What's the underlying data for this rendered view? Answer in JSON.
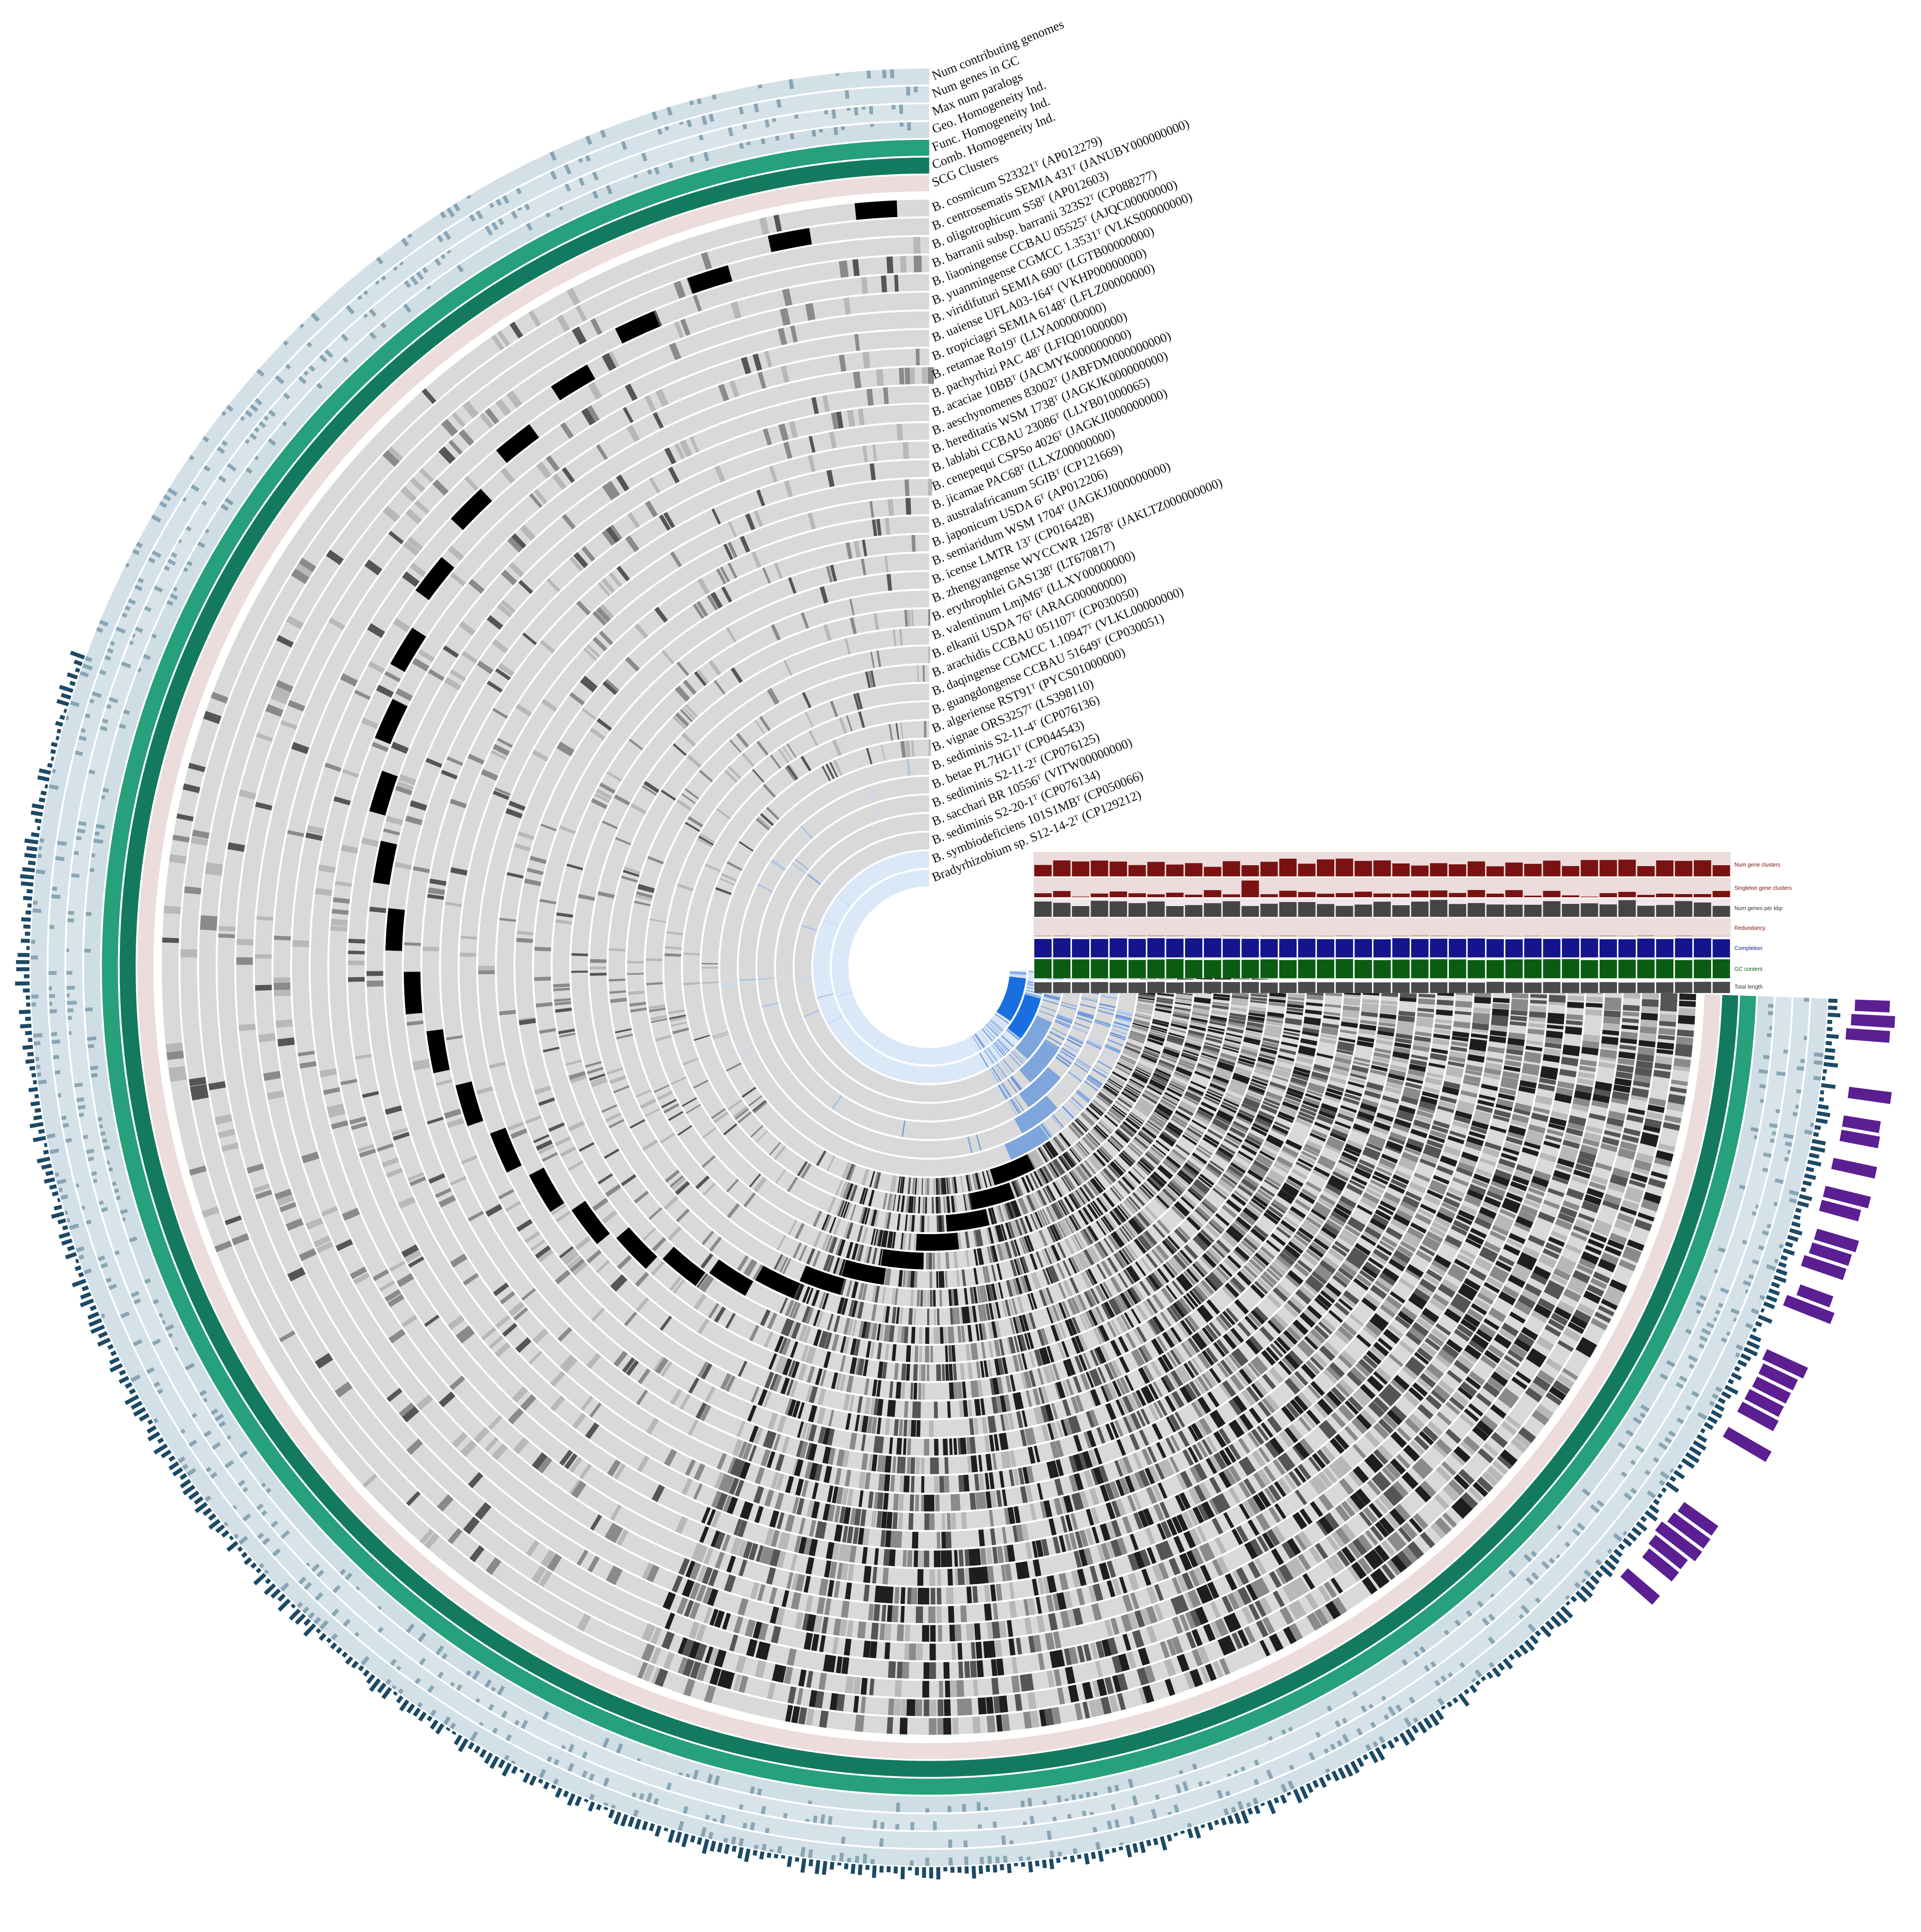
{
  "layers": [
    "Num contributing genomes",
    "Num genes in GC",
    "Max num paralogs",
    "Geo. Homogeneity Ind.",
    "Func. Homogeneity Ind.",
    "Comb. Homogeneity Ind.",
    "SCG Clusters"
  ],
  "genomes": [
    "B. cosmicum S23321ᵀ (AP012279)",
    "B. centrosematis SEMIA 431ᵀ (JANUBY000000000)",
    "B. oligotrophicum S58ᵀ (AP012603)",
    "B. barranii subsp. barranii 323S2ᵀ (CP088277)",
    "B. liaoningense CCBAU 05525ᵀ (AJQC00000000)",
    "B. yuanmingense CGMCC 1.3531ᵀ (VLKS00000000)",
    "B. viridifuturi SEMIA 690ᵀ (LGTB00000000)",
    "B. uaiense UFLA03-164ᵀ (VKHP00000000)",
    "B. tropiciagri SEMIA 6148ᵀ (LFLZ00000000)",
    "B. retamae Ro19ᵀ (LLYA00000000)",
    "B. pachyrhizi PAC 48ᵀ (LFIQ01000000)",
    "B. acaciae 10BBᵀ (JACMYK000000000)",
    "B. aeschynomenes 83002ᵀ (JABFDM000000000)",
    "B. hereditatis WSM 1738ᵀ (JAGKJK000000000)",
    "B. lablabi CCBAU 23086ᵀ (LLYB01000065)",
    "B. cenepequi CSPSo 4026ᵀ (JAGKJI000000000)",
    "B. jicamae PAC68ᵀ (LLXZ00000000)",
    "B. australafricanum 5GIBᵀ (CP121669)",
    "B. japonicum USDA 6ᵀ (AP012206)",
    "B. semiaridum WSM 1704ᵀ (JAGKJJ000000000)",
    "B. icense LMTR 13ᵀ (CP016428)",
    "B. zhengyangense WYCCWR 12678ᵀ (JAKLTZ000000000)",
    "B. erythrophlei GAS138ᵀ (LT670817)",
    "B. valentinum LmjM6ᵀ (LLXY00000000)",
    "B. elkanii USDA 76ᵀ (ARAG00000000)",
    "B. arachidis CCBAU 051107ᵀ (CP030050)",
    "B. daqingense CGMCC 1.10947ᵀ (VLKL00000000)",
    "B. guangdongense CCBAU 51649ᵀ (CP030051)",
    "B. algeriense RST91ᵀ (PYCS01000000)",
    "B. vignae ORS3257ᵀ (LS398110)",
    "B. sediminis S2-11-4ᵀ (CP076136)",
    "B. betae PL7HG1ᵀ (CP044543)",
    "B. sediminis S2-11-2ᵀ (CP076125)",
    "B. sacchari BR 10556ᵀ (VITW00000000)",
    "B. sediminis S2-20-1ᵀ (CP076134)",
    "B. symbiodeficiens 101S1MBᵀ (CP050066)",
    "Bradyrhizobium sp. S12-14-2ᵀ (CP129212)"
  ],
  "bar_layers": [
    "Num gene clusters",
    "Singleton gene clusters",
    "Num genes per kbp",
    "Redundancy",
    "Completion",
    "GC content",
    "Total length"
  ]
}
